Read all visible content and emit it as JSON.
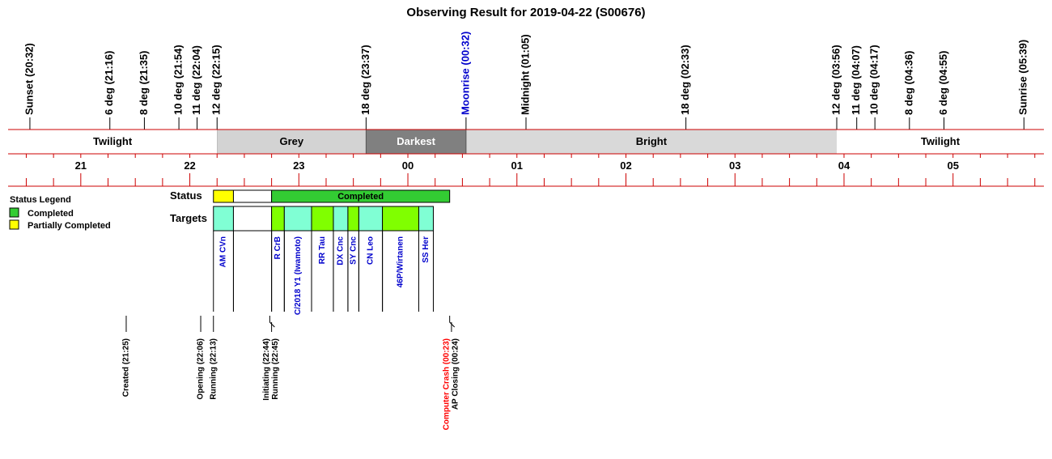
{
  "chart_data": {
    "type": "timeline",
    "title": "Observing Result for 2019-04-22 (S00676)",
    "time_axis": {
      "start": "20:20",
      "end": "05:50",
      "hour_labels": [
        "21",
        "22",
        "23",
        "00",
        "01",
        "02",
        "03",
        "04",
        "05"
      ]
    },
    "events": [
      {
        "label": "Sunset (20:32)",
        "time": "20:32",
        "color": "#000000"
      },
      {
        "label": "6 deg (21:16)",
        "time": "21:16",
        "color": "#000000"
      },
      {
        "label": "8 deg (21:35)",
        "time": "21:35",
        "color": "#000000"
      },
      {
        "label": "10 deg (21:54)",
        "time": "21:54",
        "color": "#000000"
      },
      {
        "label": "11 deg (22:04)",
        "time": "22:04",
        "color": "#000000"
      },
      {
        "label": "12 deg (22:15)",
        "time": "22:15",
        "color": "#000000"
      },
      {
        "label": "18 deg (23:37)",
        "time": "23:37",
        "color": "#000000"
      },
      {
        "label": "Moonrise (00:32)",
        "time": "00:32",
        "color": "#0000cc"
      },
      {
        "label": "Midnight (01:05)",
        "time": "01:05",
        "color": "#000000"
      },
      {
        "label": "18 deg (02:33)",
        "time": "02:33",
        "color": "#000000"
      },
      {
        "label": "12 deg (03:56)",
        "time": "03:56",
        "color": "#000000"
      },
      {
        "label": "11 deg (04:07)",
        "time": "04:07",
        "color": "#000000"
      },
      {
        "label": "10 deg (04:17)",
        "time": "04:17",
        "color": "#000000"
      },
      {
        "label": "8 deg (04:36)",
        "time": "04:36",
        "color": "#000000"
      },
      {
        "label": "6 deg (04:55)",
        "time": "04:55",
        "color": "#000000"
      },
      {
        "label": "Sunrise (05:39)",
        "time": "05:39",
        "color": "#000000"
      }
    ],
    "sky_bands": [
      {
        "label": "Twilight",
        "start": "20:20",
        "end": "22:15",
        "fill": "#ffffff",
        "text_color": "#000000"
      },
      {
        "label": "Grey",
        "start": "22:15",
        "end": "23:37",
        "fill": "#d3d3d3",
        "text_color": "#000000"
      },
      {
        "label": "Darkest",
        "start": "23:37",
        "end": "00:32",
        "fill": "#808080",
        "text_color": "#ffffff"
      },
      {
        "label": "Bright",
        "start": "00:32",
        "end": "03:56",
        "fill": "#d9d9d9",
        "text_color": "#000000"
      },
      {
        "label": "Twilight",
        "start": "03:56",
        "end": "05:50",
        "fill": "#ffffff",
        "text_color": "#000000"
      }
    ],
    "status_row_label": "Status",
    "status_segments": [
      {
        "start": "22:13",
        "end": "22:24",
        "state": "Partially Completed",
        "fill": "#ffff00",
        "label": ""
      },
      {
        "start": "22:24",
        "end": "22:45",
        "state": "none",
        "fill": "#ffffff",
        "label": ""
      },
      {
        "start": "22:45",
        "end": "00:23",
        "state": "Completed",
        "fill": "#33cc33",
        "label": "Completed"
      }
    ],
    "targets_row_label": "Targets",
    "targets": [
      {
        "name": "AM CVn",
        "start": "22:13",
        "end": "22:24",
        "fill": "#80ffd4"
      },
      {
        "name": "",
        "start": "22:24",
        "end": "22:45",
        "fill": "#ffffff"
      },
      {
        "name": "R CrB",
        "start": "22:45",
        "end": "22:52",
        "fill": "#80ff00"
      },
      {
        "name": "C/2018 Y1 (Iwamoto)",
        "start": "22:52",
        "end": "23:07",
        "fill": "#80ffd4"
      },
      {
        "name": "RR Tau",
        "start": "23:07",
        "end": "23:19",
        "fill": "#80ff00"
      },
      {
        "name": "DX Cnc",
        "start": "23:19",
        "end": "23:27",
        "fill": "#80ffd4"
      },
      {
        "name": "SY Cnc",
        "start": "23:27",
        "end": "23:33",
        "fill": "#80ff00"
      },
      {
        "name": "CN Leo",
        "start": "23:33",
        "end": "23:46",
        "fill": "#80ffd4"
      },
      {
        "name": "46P/Wirtanen",
        "start": "23:46",
        "end": "00:06",
        "fill": "#80ff00"
      },
      {
        "name": "SS Her",
        "start": "00:06",
        "end": "00:14",
        "fill": "#80ffd4"
      }
    ],
    "log_events": [
      {
        "label": "Created (21:25)",
        "time": "21:25",
        "color": "#000000"
      },
      {
        "label": "Opening (22:06)",
        "time": "22:06",
        "color": "#000000"
      },
      {
        "label": "Running (22:13)",
        "time": "22:13",
        "color": "#000000"
      },
      {
        "label": "Initiating (22:44)",
        "time": "22:44",
        "color": "#000000"
      },
      {
        "label": "Running (22:45)",
        "time": "22:45",
        "color": "#000000"
      },
      {
        "label": "Computer Crash (00:23)",
        "time": "00:23",
        "color": "#ff0000"
      },
      {
        "label": "AP Closing (00:24)",
        "time": "00:24",
        "color": "#000000"
      }
    ],
    "legend": {
      "title": "Status Legend",
      "position": "left",
      "items": [
        {
          "label": "Completed",
          "color": "#33cc33"
        },
        {
          "label": "Partially Completed",
          "color": "#ffff00"
        }
      ]
    },
    "colors": {
      "axis_line": "#cc0000",
      "target_text": "#0000cc",
      "alert_text": "#ff0000"
    }
  }
}
